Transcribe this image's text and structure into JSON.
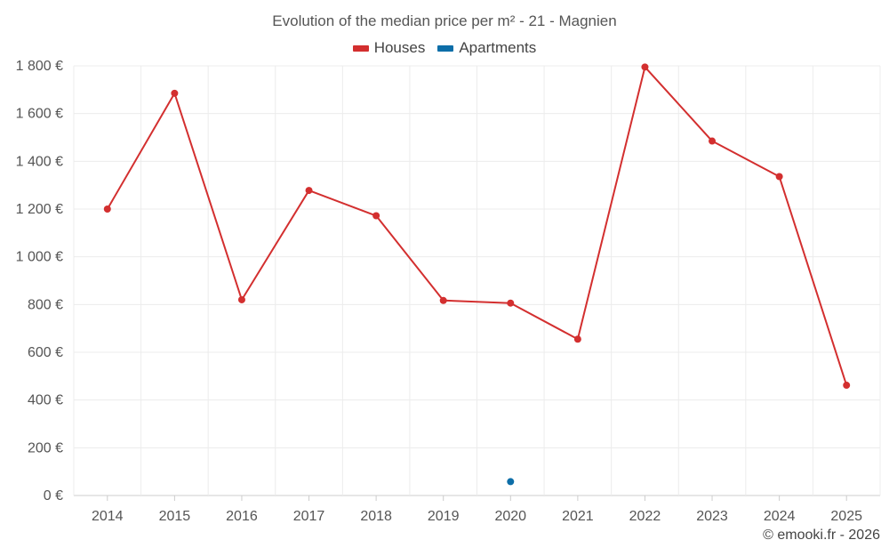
{
  "chart_data": {
    "type": "line",
    "title": "Evolution of the median price per m² - 21 - Magnien",
    "categories": [
      "2014",
      "2015",
      "2016",
      "2017",
      "2018",
      "2019",
      "2020",
      "2021",
      "2022",
      "2023",
      "2024",
      "2025"
    ],
    "series": [
      {
        "name": "Houses",
        "color": "#d32f2f",
        "values": [
          1200,
          1685,
          820,
          1278,
          1172,
          817,
          806,
          655,
          1795,
          1485,
          1336,
          462
        ]
      },
      {
        "name": "Apartments",
        "color": "#0d6ea8",
        "values": [
          null,
          null,
          null,
          null,
          null,
          null,
          58,
          null,
          null,
          null,
          null,
          null
        ]
      }
    ],
    "ylim": [
      0,
      1800
    ],
    "yticks": [
      0,
      200,
      400,
      600,
      800,
      1000,
      1200,
      1400,
      1600,
      1800
    ],
    "ytick_labels": [
      "0 €",
      "200 €",
      "400 €",
      "600 €",
      "800 €",
      "1 000 €",
      "1 200 €",
      "1 400 €",
      "1 600 €",
      "1 800 €"
    ],
    "xlabel": "",
    "ylabel": "",
    "grid": true,
    "legend_position": "top-center"
  },
  "credit": "© emooki.fr - 2026"
}
